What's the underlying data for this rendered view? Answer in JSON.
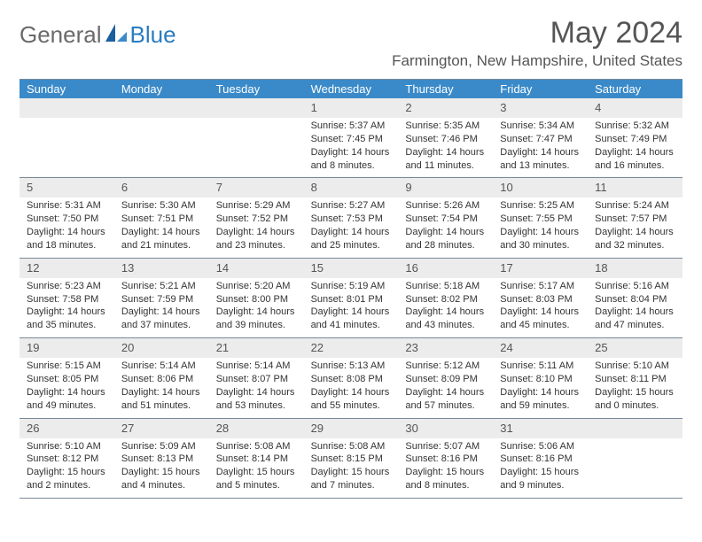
{
  "logo": {
    "general": "General",
    "blue": "Blue"
  },
  "title": {
    "month": "May 2024",
    "location": "Farmington, New Hampshire, United States"
  },
  "colors": {
    "header_bg": "#3a8ac9",
    "header_text": "#ffffff",
    "daynum_bg": "#ececec",
    "border": "#788a99",
    "text": "#333333",
    "logo_gray": "#6a6a6a",
    "logo_blue": "#2a7cc0"
  },
  "layout": {
    "columns": 7,
    "font_body": 11,
    "font_daynum": 13,
    "font_header": 13
  },
  "dayNames": [
    "Sunday",
    "Monday",
    "Tuesday",
    "Wednesday",
    "Thursday",
    "Friday",
    "Saturday"
  ],
  "weeks": [
    [
      null,
      null,
      null,
      {
        "n": "1",
        "sr": "5:37 AM",
        "ss": "7:45 PM",
        "dl": "14 hours and 8 minutes."
      },
      {
        "n": "2",
        "sr": "5:35 AM",
        "ss": "7:46 PM",
        "dl": "14 hours and 11 minutes."
      },
      {
        "n": "3",
        "sr": "5:34 AM",
        "ss": "7:47 PM",
        "dl": "14 hours and 13 minutes."
      },
      {
        "n": "4",
        "sr": "5:32 AM",
        "ss": "7:49 PM",
        "dl": "14 hours and 16 minutes."
      }
    ],
    [
      {
        "n": "5",
        "sr": "5:31 AM",
        "ss": "7:50 PM",
        "dl": "14 hours and 18 minutes."
      },
      {
        "n": "6",
        "sr": "5:30 AM",
        "ss": "7:51 PM",
        "dl": "14 hours and 21 minutes."
      },
      {
        "n": "7",
        "sr": "5:29 AM",
        "ss": "7:52 PM",
        "dl": "14 hours and 23 minutes."
      },
      {
        "n": "8",
        "sr": "5:27 AM",
        "ss": "7:53 PM",
        "dl": "14 hours and 25 minutes."
      },
      {
        "n": "9",
        "sr": "5:26 AM",
        "ss": "7:54 PM",
        "dl": "14 hours and 28 minutes."
      },
      {
        "n": "10",
        "sr": "5:25 AM",
        "ss": "7:55 PM",
        "dl": "14 hours and 30 minutes."
      },
      {
        "n": "11",
        "sr": "5:24 AM",
        "ss": "7:57 PM",
        "dl": "14 hours and 32 minutes."
      }
    ],
    [
      {
        "n": "12",
        "sr": "5:23 AM",
        "ss": "7:58 PM",
        "dl": "14 hours and 35 minutes."
      },
      {
        "n": "13",
        "sr": "5:21 AM",
        "ss": "7:59 PM",
        "dl": "14 hours and 37 minutes."
      },
      {
        "n": "14",
        "sr": "5:20 AM",
        "ss": "8:00 PM",
        "dl": "14 hours and 39 minutes."
      },
      {
        "n": "15",
        "sr": "5:19 AM",
        "ss": "8:01 PM",
        "dl": "14 hours and 41 minutes."
      },
      {
        "n": "16",
        "sr": "5:18 AM",
        "ss": "8:02 PM",
        "dl": "14 hours and 43 minutes."
      },
      {
        "n": "17",
        "sr": "5:17 AM",
        "ss": "8:03 PM",
        "dl": "14 hours and 45 minutes."
      },
      {
        "n": "18",
        "sr": "5:16 AM",
        "ss": "8:04 PM",
        "dl": "14 hours and 47 minutes."
      }
    ],
    [
      {
        "n": "19",
        "sr": "5:15 AM",
        "ss": "8:05 PM",
        "dl": "14 hours and 49 minutes."
      },
      {
        "n": "20",
        "sr": "5:14 AM",
        "ss": "8:06 PM",
        "dl": "14 hours and 51 minutes."
      },
      {
        "n": "21",
        "sr": "5:14 AM",
        "ss": "8:07 PM",
        "dl": "14 hours and 53 minutes."
      },
      {
        "n": "22",
        "sr": "5:13 AM",
        "ss": "8:08 PM",
        "dl": "14 hours and 55 minutes."
      },
      {
        "n": "23",
        "sr": "5:12 AM",
        "ss": "8:09 PM",
        "dl": "14 hours and 57 minutes."
      },
      {
        "n": "24",
        "sr": "5:11 AM",
        "ss": "8:10 PM",
        "dl": "14 hours and 59 minutes."
      },
      {
        "n": "25",
        "sr": "5:10 AM",
        "ss": "8:11 PM",
        "dl": "15 hours and 0 minutes."
      }
    ],
    [
      {
        "n": "26",
        "sr": "5:10 AM",
        "ss": "8:12 PM",
        "dl": "15 hours and 2 minutes."
      },
      {
        "n": "27",
        "sr": "5:09 AM",
        "ss": "8:13 PM",
        "dl": "15 hours and 4 minutes."
      },
      {
        "n": "28",
        "sr": "5:08 AM",
        "ss": "8:14 PM",
        "dl": "15 hours and 5 minutes."
      },
      {
        "n": "29",
        "sr": "5:08 AM",
        "ss": "8:15 PM",
        "dl": "15 hours and 7 minutes."
      },
      {
        "n": "30",
        "sr": "5:07 AM",
        "ss": "8:16 PM",
        "dl": "15 hours and 8 minutes."
      },
      {
        "n": "31",
        "sr": "5:06 AM",
        "ss": "8:16 PM",
        "dl": "15 hours and 9 minutes."
      },
      null
    ]
  ],
  "labels": {
    "sunrise": "Sunrise:",
    "sunset": "Sunset:",
    "daylight": "Daylight:"
  }
}
